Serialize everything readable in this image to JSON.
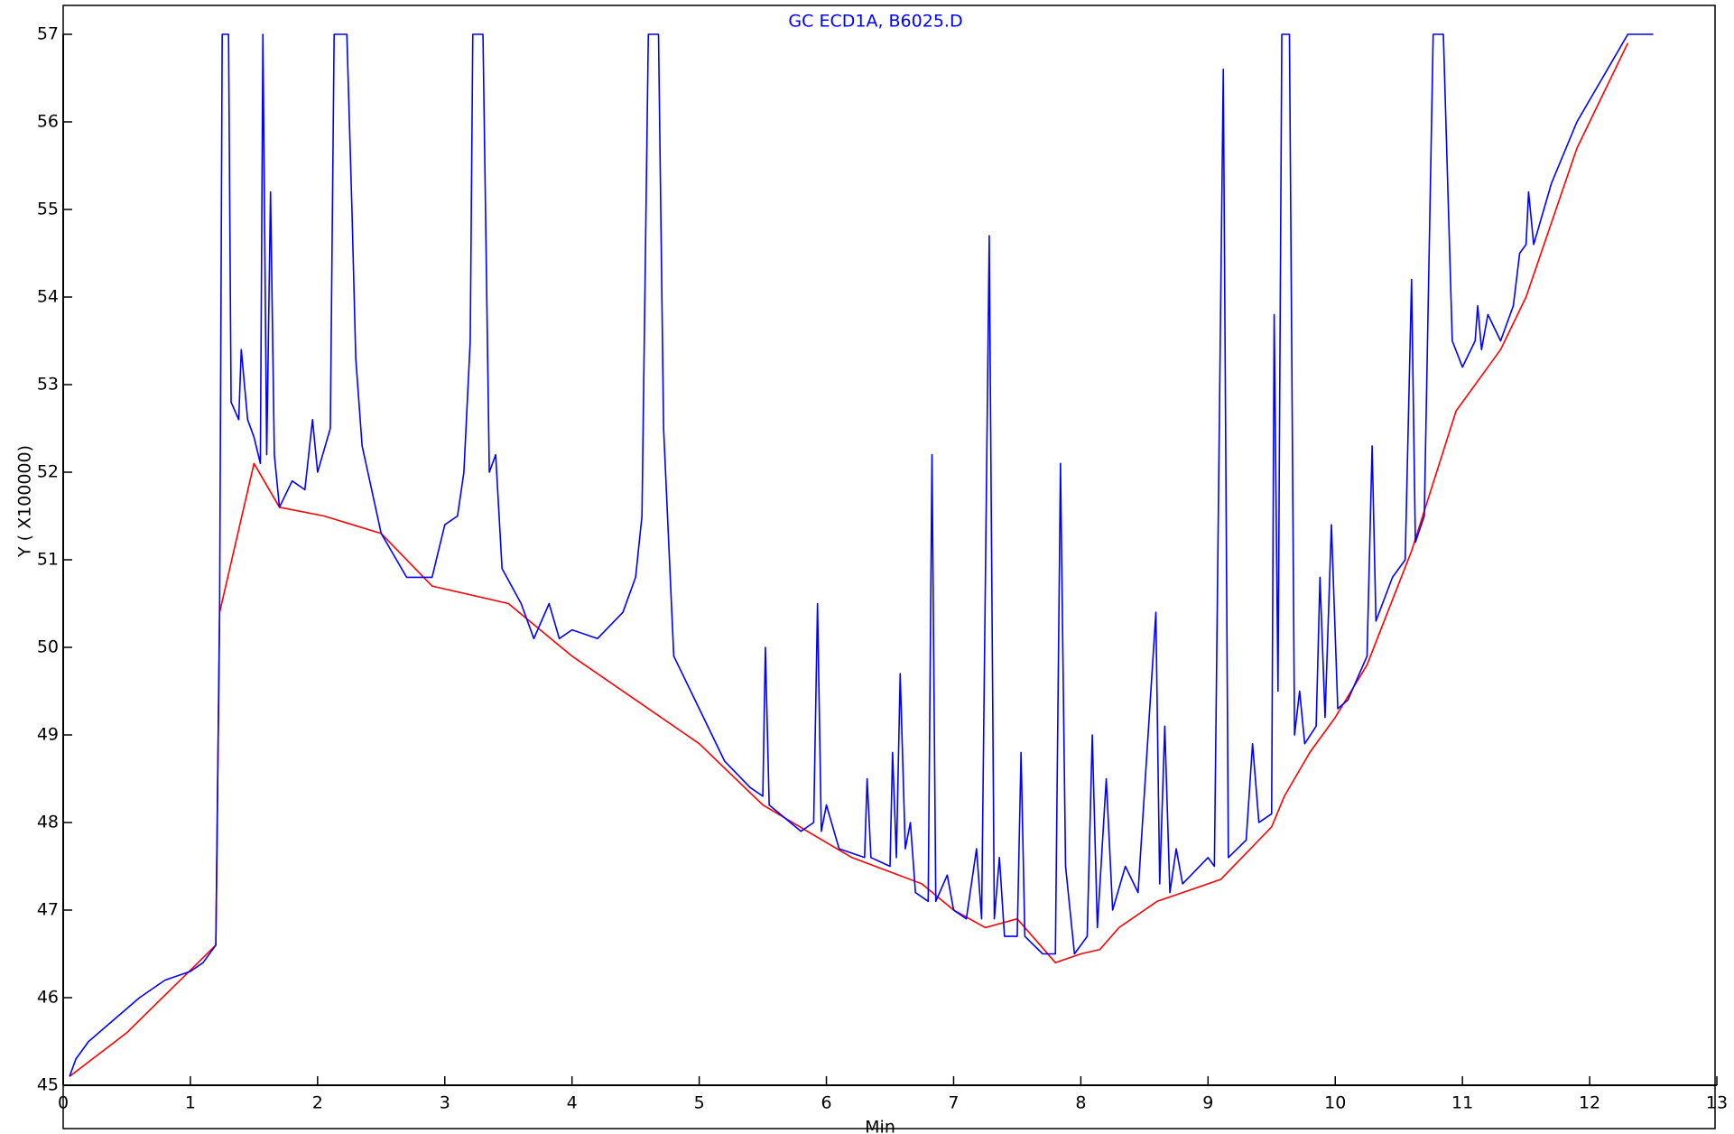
{
  "chart_data": {
    "type": "line",
    "title": "GC ECD1A, B6025.D",
    "x_label": "Min",
    "y_label": "Y ( X100000)",
    "xlim": [
      0,
      13
    ],
    "xticks": [
      0,
      1,
      2,
      3,
      4,
      5,
      6,
      7,
      8,
      9,
      10,
      11,
      12,
      13
    ],
    "ylim": [
      45,
      57
    ],
    "yticks": [
      45,
      46,
      47,
      48,
      49,
      50,
      51,
      52,
      53,
      54,
      55,
      56,
      57
    ],
    "grid": false,
    "series": [
      {
        "color": "#0000ff",
        "x": [
          0.05,
          0.1,
          0.2,
          0.4,
          0.6,
          0.8,
          1.0,
          1.1,
          1.2,
          1.23,
          1.25,
          1.3,
          1.32,
          1.38,
          1.4,
          1.45,
          1.5,
          1.55,
          1.57,
          1.6,
          1.63,
          1.66,
          1.7,
          1.8,
          1.9,
          1.96,
          2.0,
          2.1,
          2.13,
          2.23,
          2.27,
          2.3,
          2.35,
          2.5,
          2.7,
          2.9,
          3.0,
          3.1,
          3.15,
          3.2,
          3.22,
          3.3,
          3.35,
          3.4,
          3.45,
          3.6,
          3.7,
          3.82,
          3.9,
          4.0,
          4.2,
          4.4,
          4.5,
          4.55,
          4.6,
          4.68,
          4.72,
          4.8,
          5.0,
          5.2,
          5.4,
          5.5,
          5.52,
          5.55,
          5.8,
          5.9,
          5.93,
          5.96,
          6.0,
          6.1,
          6.3,
          6.32,
          6.35,
          6.5,
          6.52,
          6.55,
          6.58,
          6.62,
          6.66,
          6.7,
          6.8,
          6.83,
          6.86,
          6.95,
          7.0,
          7.1,
          7.18,
          7.22,
          7.28,
          7.32,
          7.36,
          7.4,
          7.5,
          7.53,
          7.56,
          7.7,
          7.8,
          7.84,
          7.88,
          7.95,
          8.05,
          8.09,
          8.13,
          8.2,
          8.25,
          8.35,
          8.45,
          8.59,
          8.62,
          8.66,
          8.7,
          8.75,
          8.8,
          9.0,
          9.05,
          9.12,
          9.16,
          9.3,
          9.35,
          9.4,
          9.5,
          9.52,
          9.55,
          9.58,
          9.64,
          9.68,
          9.72,
          9.76,
          9.85,
          9.88,
          9.92,
          9.97,
          10.02,
          10.1,
          10.25,
          10.29,
          10.32,
          10.45,
          10.55,
          10.6,
          10.63,
          10.7,
          10.77,
          10.85,
          10.92,
          11.0,
          11.1,
          11.12,
          11.15,
          11.2,
          11.3,
          11.4,
          11.45,
          11.5,
          11.52,
          11.56,
          11.7,
          11.9,
          12.1,
          12.3,
          12.5
        ],
        "values": [
          45.1,
          45.3,
          45.5,
          45.75,
          46.0,
          46.2,
          46.3,
          46.4,
          46.6,
          50.5,
          57,
          57,
          52.8,
          52.6,
          53.4,
          52.6,
          52.4,
          52.1,
          57,
          52.2,
          55.2,
          52.2,
          51.6,
          51.9,
          51.8,
          52.6,
          52.0,
          52.5,
          57,
          57,
          55,
          53.3,
          52.3,
          51.3,
          50.8,
          50.8,
          51.4,
          51.5,
          52.0,
          53.5,
          57,
          57,
          52.0,
          52.2,
          50.9,
          50.5,
          50.1,
          50.5,
          50.1,
          50.2,
          50.1,
          50.4,
          50.8,
          51.5,
          57,
          57,
          52.5,
          49.9,
          49.3,
          48.7,
          48.4,
          48.3,
          50.0,
          48.2,
          47.9,
          48.0,
          50.5,
          47.9,
          48.2,
          47.7,
          47.6,
          48.5,
          47.6,
          47.5,
          48.8,
          47.6,
          49.7,
          47.7,
          48.0,
          47.2,
          47.1,
          52.2,
          47.1,
          47.4,
          47.0,
          46.9,
          47.7,
          46.9,
          54.7,
          46.9,
          47.6,
          46.7,
          46.7,
          48.8,
          46.7,
          46.5,
          46.5,
          52.1,
          47.5,
          46.5,
          46.7,
          49.0,
          46.8,
          48.5,
          47.0,
          47.5,
          47.2,
          50.4,
          47.3,
          49.1,
          47.2,
          47.7,
          47.3,
          47.6,
          47.5,
          56.6,
          47.6,
          47.8,
          48.9,
          48.0,
          48.1,
          53.8,
          49.5,
          57,
          57,
          49.0,
          49.5,
          48.9,
          49.1,
          50.8,
          49.2,
          51.4,
          49.3,
          49.4,
          49.9,
          52.3,
          50.3,
          50.8,
          51.0,
          54.2,
          51.2,
          51.5,
          57,
          57,
          53.5,
          53.2,
          53.5,
          53.9,
          53.4,
          53.8,
          53.5,
          53.9,
          54.5,
          54.6,
          55.2,
          54.6,
          55.3,
          56.0,
          56.5,
          57,
          57
        ]
      },
      {
        "color": "#ff0000",
        "x": [
          0.05,
          0.5,
          1.2,
          1.23,
          1.5,
          1.7,
          2.05,
          2.5,
          2.9,
          3.5,
          4.0,
          4.5,
          5.0,
          5.5,
          6.2,
          6.75,
          7.0,
          7.25,
          7.5,
          7.8,
          8.0,
          8.15,
          8.3,
          8.6,
          8.8,
          9.1,
          9.5,
          9.6,
          9.8,
          10.0,
          10.25,
          10.6,
          10.95,
          11.3,
          11.5,
          11.9,
          12.3
        ],
        "values": [
          45.1,
          45.6,
          46.6,
          50.4,
          52.1,
          51.6,
          51.5,
          51.3,
          50.7,
          50.5,
          49.9,
          49.4,
          48.9,
          48.2,
          47.6,
          47.3,
          47.0,
          46.8,
          46.9,
          46.4,
          46.5,
          46.55,
          46.8,
          47.1,
          47.2,
          47.35,
          47.95,
          48.3,
          48.8,
          49.2,
          49.8,
          51.1,
          52.7,
          53.4,
          54.0,
          55.7,
          56.9
        ]
      }
    ]
  }
}
